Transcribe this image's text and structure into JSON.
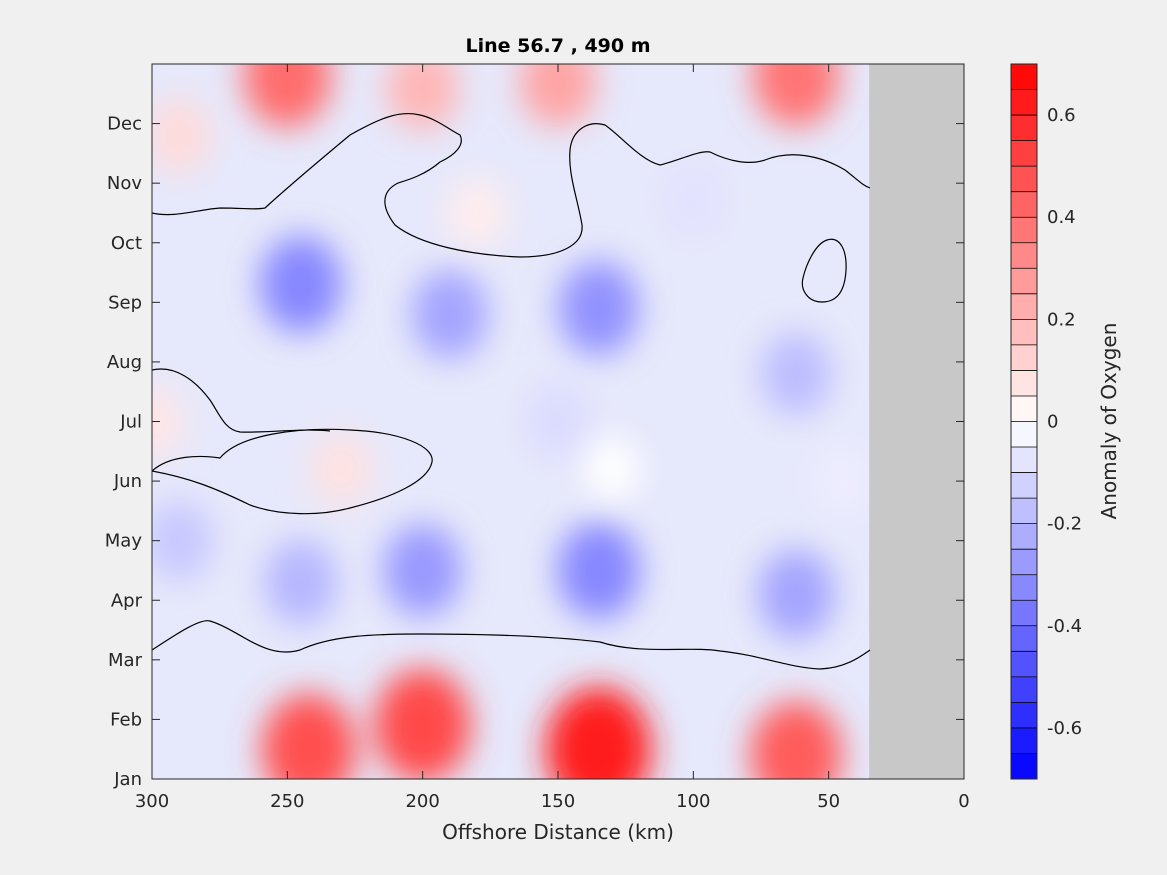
{
  "chart_data": {
    "type": "heatmap",
    "title": "Line 56.7 , 490 m",
    "xlabel": "Offshore Distance (km)",
    "ylabel": "",
    "colorbar_label": "Anomaly of Oxygen",
    "x_ticks": [
      "300",
      "250",
      "200",
      "150",
      "100",
      "50",
      "0"
    ],
    "x_tick_values": [
      300,
      250,
      200,
      150,
      100,
      50,
      0
    ],
    "xlim": [
      300,
      0
    ],
    "y_ticks": [
      "Jan",
      "Feb",
      "Mar",
      "Apr",
      "May",
      "Jun",
      "Jul",
      "Aug",
      "Sep",
      "Oct",
      "Nov",
      "Dec"
    ],
    "ylim": [
      1,
      13
    ],
    "data_extent_km": 35,
    "colorbar_ticks": [
      "0.6",
      "0.4",
      "0.2",
      "0",
      "-0.2",
      "-0.4",
      "-0.6"
    ],
    "colorbar_tick_values": [
      0.6,
      0.4,
      0.2,
      0,
      -0.2,
      -0.4,
      -0.6
    ],
    "clim": [
      -0.7,
      0.7
    ],
    "contour_interval": 0.05,
    "zero_contour": true,
    "grid": false,
    "colors": {
      "positive": "#ff0000",
      "negative": "#0000ff",
      "neutral": "#ffffff",
      "no_data": "#c8c8c8",
      "background": "#f0f0f0"
    },
    "features": [
      {
        "x": 135,
        "month": 1.5,
        "value": 0.62
      },
      {
        "x": 242,
        "month": 1.5,
        "value": 0.48
      },
      {
        "x": 200,
        "month": 1.9,
        "value": 0.5
      },
      {
        "x": 62,
        "month": 1.4,
        "value": 0.45
      },
      {
        "x": 250,
        "month": 12.8,
        "value": 0.4
      },
      {
        "x": 62,
        "month": 12.8,
        "value": 0.38
      },
      {
        "x": 150,
        "month": 12.7,
        "value": 0.25
      },
      {
        "x": 200,
        "month": 12.6,
        "value": 0.2
      },
      {
        "x": 290,
        "month": 11.8,
        "value": 0.1
      },
      {
        "x": 300,
        "month": 7.0,
        "value": 0.07
      },
      {
        "x": 230,
        "month": 6.2,
        "value": 0.08
      },
      {
        "x": 180,
        "month": 10.5,
        "value": 0.05
      },
      {
        "x": 245,
        "month": 9.3,
        "value": -0.33
      },
      {
        "x": 190,
        "month": 8.8,
        "value": -0.25
      },
      {
        "x": 135,
        "month": 8.9,
        "value": -0.3
      },
      {
        "x": 200,
        "month": 4.5,
        "value": -0.28
      },
      {
        "x": 135,
        "month": 4.5,
        "value": -0.33
      },
      {
        "x": 245,
        "month": 4.3,
        "value": -0.2
      },
      {
        "x": 62,
        "month": 4.1,
        "value": -0.25
      },
      {
        "x": 62,
        "month": 7.8,
        "value": -0.18
      },
      {
        "x": 290,
        "month": 5.0,
        "value": -0.15
      },
      {
        "x": 150,
        "month": 7.0,
        "value": -0.1
      },
      {
        "x": 100,
        "month": 10.7,
        "value": -0.08
      },
      {
        "x": 130,
        "month": 6.2,
        "value": 0.0
      },
      {
        "x": 45,
        "month": 6.0,
        "value": -0.05
      }
    ]
  }
}
